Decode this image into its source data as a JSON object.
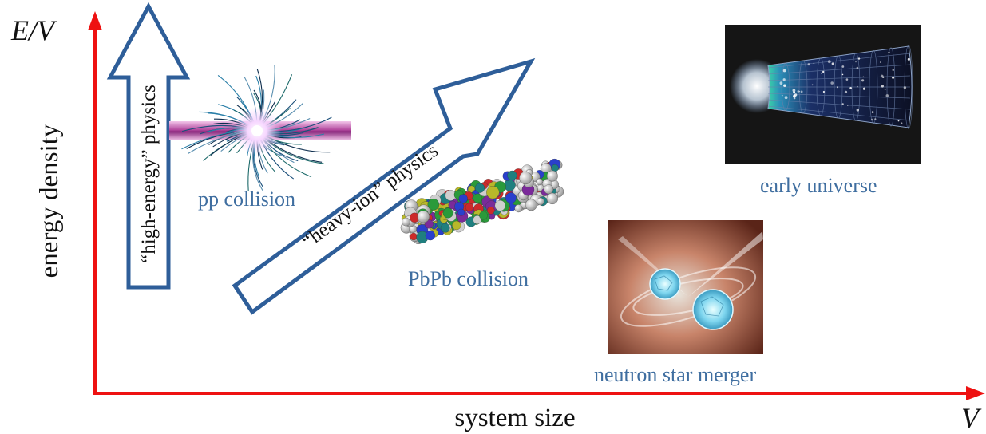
{
  "axes": {
    "y_symbol": "E/V",
    "y_label": "energy density",
    "x_label": "system size",
    "x_symbol": "V",
    "axis_color": "#ee1111"
  },
  "arrows": {
    "high_energy": "“high-energy” physics",
    "heavy_ion": "“heavy-ion” physics",
    "outline_color": "#2e5e99"
  },
  "systems": {
    "pp": {
      "caption": "pp collision"
    },
    "pbpb": {
      "caption": "PbPb collision"
    },
    "early_universe": {
      "caption": "early universe"
    },
    "neutron_star": {
      "caption": "neutron star merger"
    }
  },
  "caption_color": "#3f6ea0"
}
